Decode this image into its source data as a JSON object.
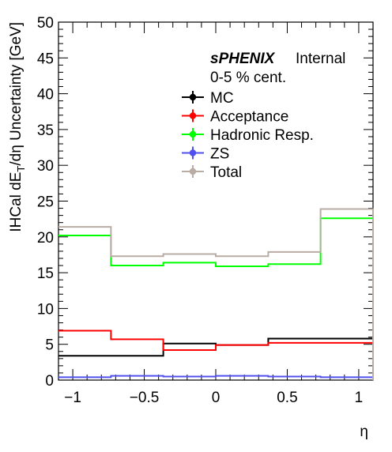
{
  "chart_data": {
    "type": "step-histogram",
    "title": "",
    "header": {
      "experiment": "sPHENIX",
      "status": "Internal"
    },
    "subtitle": "0-5 % cent.",
    "xlabel": "η",
    "ylabel_main": "IHCal dE",
    "ylabel_sub": "T",
    "ylabel_tail": "/dη Uncertainty [GeV]",
    "xlim": [
      -1.1,
      1.1
    ],
    "ylim": [
      0,
      50
    ],
    "x_ticks": [
      -1,
      -0.5,
      0,
      0.5,
      1
    ],
    "x_tick_labels": [
      "−1",
      "−0.5",
      "0",
      "0.5",
      "1"
    ],
    "y_ticks": [
      0,
      5,
      10,
      15,
      20,
      25,
      30,
      35,
      40,
      45,
      50
    ],
    "y_tick_labels": [
      "0",
      "5",
      "10",
      "15",
      "20",
      "25",
      "30",
      "35",
      "40",
      "45",
      "50"
    ],
    "bin_edges": [
      -1.1,
      -0.733,
      -0.367,
      0.0,
      0.367,
      0.733,
      1.1
    ],
    "series": [
      {
        "name": "MC",
        "color": "#000000",
        "values": [
          3.4,
          3.4,
          5.1,
          4.9,
          5.8,
          5.8
        ]
      },
      {
        "name": "Acceptance",
        "color": "#ff0000",
        "values": [
          6.9,
          5.7,
          4.2,
          4.9,
          5.2,
          5.2
        ]
      },
      {
        "name": "Hadronic Resp.",
        "color": "#00ff00",
        "values": [
          20.2,
          16.0,
          16.4,
          15.9,
          16.2,
          22.6
        ]
      },
      {
        "name": "ZS",
        "color": "#5050ee",
        "values": [
          0.4,
          0.6,
          0.5,
          0.6,
          0.5,
          0.4
        ]
      },
      {
        "name": "Total",
        "color": "#b9aca4",
        "values": [
          21.4,
          17.3,
          17.6,
          17.3,
          17.9,
          23.9
        ]
      }
    ],
    "legend_position": "top-right"
  }
}
